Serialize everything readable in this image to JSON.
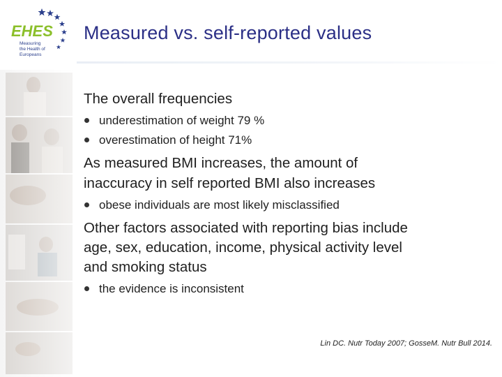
{
  "slide": {
    "title": "Measured vs. self-reported values"
  },
  "logo": {
    "brand": "EHES",
    "tagline_1": "Measuring",
    "tagline_2": "the Health of",
    "tagline_3": "Europeans"
  },
  "blocks": [
    {
      "text": "The overall frequencies",
      "bullets": [
        "underestimation of weight 79 %",
        "overestimation of height 71%"
      ]
    },
    {
      "text_line_1": "As measured BMI increases, the amount of",
      "text_line_2": "inaccuracy in self reported BMI also increases",
      "bullets": [
        "obese individuals are most likely misclassified"
      ]
    },
    {
      "text_line_1": "Other factors associated with reporting bias include",
      "text_line_2": "age, sex, education, income, physical activity level",
      "text_line_3": "and smoking status",
      "bullets": [
        "the evidence is inconsistent"
      ]
    }
  ],
  "reference": "Lin DC. Nutr Today 2007; GosseM. Nutr Bull 2014.",
  "colors": {
    "title": "#2b2f86",
    "logo_green": "#8bbf2a",
    "logo_blue": "#2b3f8c"
  }
}
